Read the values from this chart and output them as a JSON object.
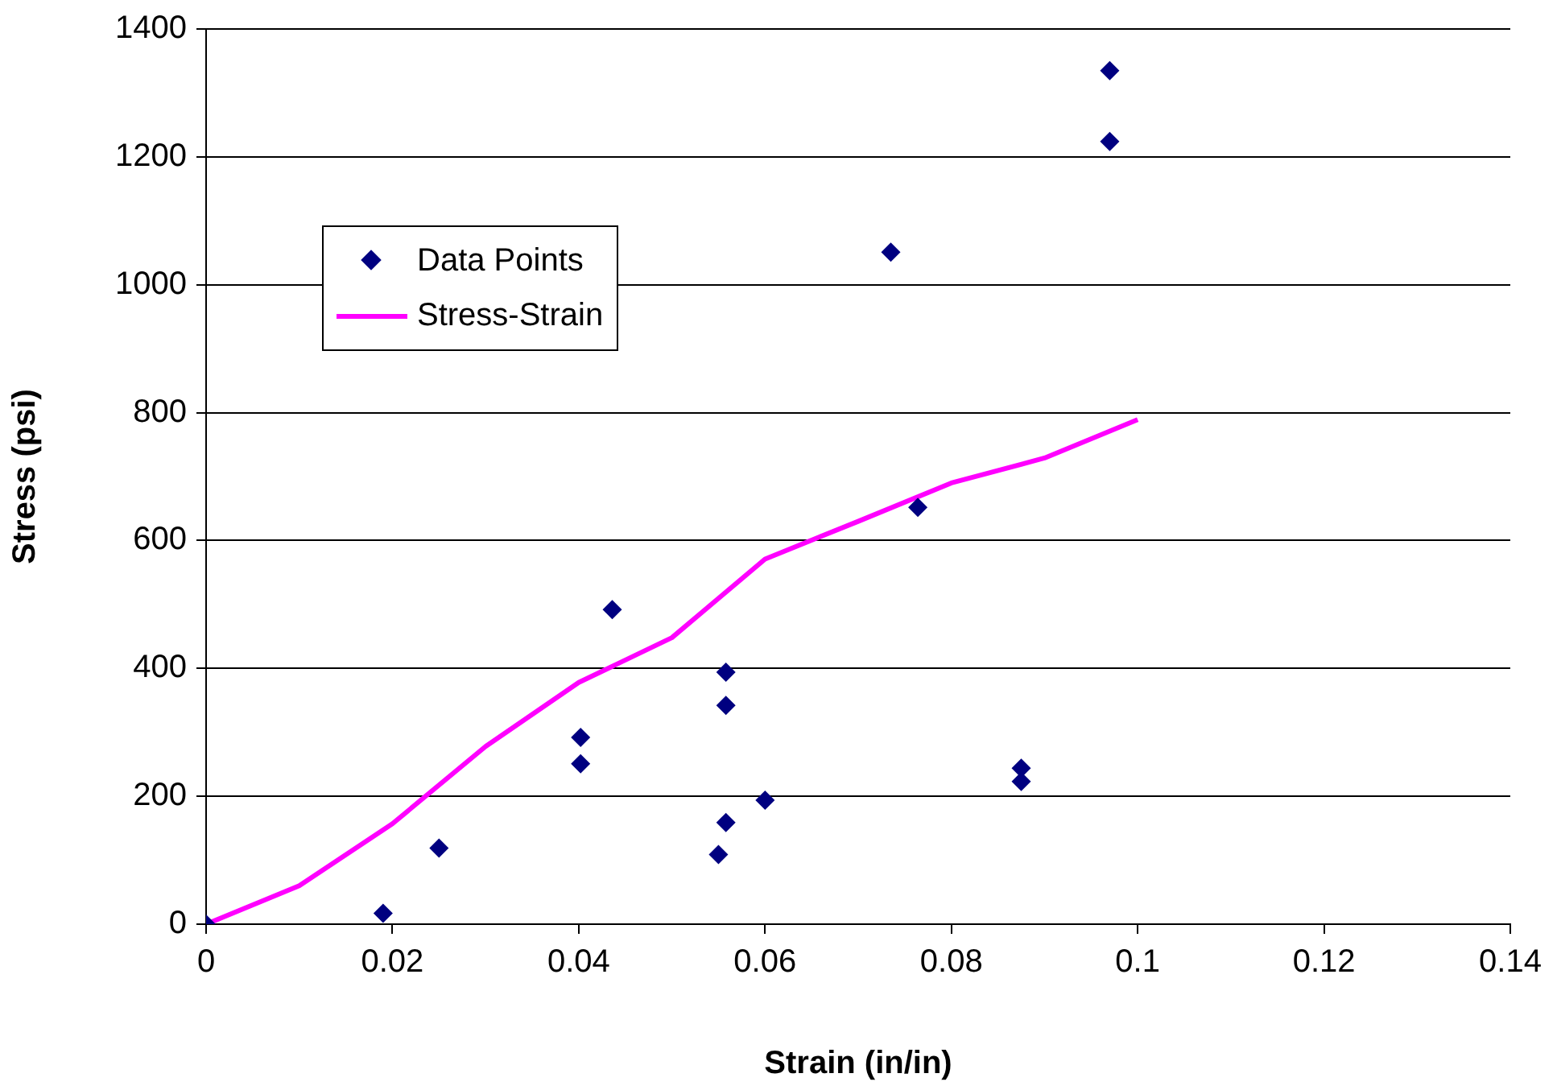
{
  "chart_data": {
    "type": "scatter",
    "xlabel": "Strain (in/in)",
    "ylabel": "Stress (psi)",
    "xlim": [
      0,
      0.14
    ],
    "xticks": [
      0,
      0.02,
      0.04,
      0.06,
      0.08,
      0.1,
      0.12,
      0.14
    ],
    "ylim": [
      0,
      1400
    ],
    "yticks": [
      0,
      200,
      400,
      600,
      800,
      1000,
      1200,
      1400
    ],
    "grid": "y",
    "legend": "top left",
    "series": [
      {
        "name": "Data Points",
        "color": "#000080",
        "marker": "diamond",
        "x": [
          0,
          0.019,
          0.025,
          0.0402,
          0.0402,
          0.0436,
          0.0558,
          0.0558,
          0.0558,
          0.055,
          0.06,
          0.0875,
          0.0875,
          0.097,
          0.097,
          0.0735,
          0.0764
        ],
        "values": [
          0,
          17,
          119,
          251,
          292,
          492,
          394,
          342,
          159,
          109,
          194,
          244,
          223,
          1335,
          1224,
          1051,
          652
        ]
      },
      {
        "name": "Stress-Strain",
        "type": "line",
        "color": "#ff00ff",
        "marker": "none",
        "line_style": "solid",
        "x": [
          0,
          0.01,
          0.02,
          0.03,
          0.04,
          0.05,
          0.06,
          0.07,
          0.08,
          0.09,
          0.1
        ],
        "values": [
          0,
          60,
          157,
          278,
          378,
          448,
          571,
          630,
          690,
          729,
          789
        ]
      }
    ]
  }
}
